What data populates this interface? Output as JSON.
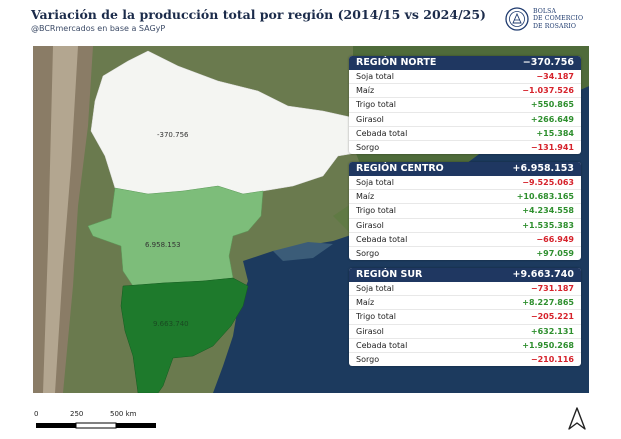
{
  "header": {
    "title": "Variación de la producción total por región (2014/15 vs 2024/25)",
    "subtitle": "@BCRmercados en base a SAGyP"
  },
  "logo": {
    "line1": "BOLSA",
    "line2": "DE COMERCIO",
    "line3": "DE ROSARIO"
  },
  "map": {
    "colors": {
      "norte": "#f4f5f2",
      "centro": "#7dbd7a",
      "sur": "#1e7a2c",
      "sea": "#1c3a5e"
    },
    "labels": {
      "norte": "-370.756",
      "centro": "6.958.153",
      "sur": "9.663.740"
    }
  },
  "regions": [
    {
      "name": "REGIÓN NORTE",
      "total": "−370.756",
      "rows": [
        {
          "crop": "Soja total",
          "value": "−34.187",
          "sign": "neg"
        },
        {
          "crop": "Maíz",
          "value": "−1.037.526",
          "sign": "neg"
        },
        {
          "crop": "Trigo total",
          "value": "+550.865",
          "sign": "pos"
        },
        {
          "crop": "Girasol",
          "value": "+266.649",
          "sign": "pos"
        },
        {
          "crop": "Cebada total",
          "value": "+15.384",
          "sign": "pos"
        },
        {
          "crop": "Sorgo",
          "value": "−131.941",
          "sign": "neg"
        }
      ]
    },
    {
      "name": "REGIÓN CENTRO",
      "total": "+6.958.153",
      "rows": [
        {
          "crop": "Soja total",
          "value": "−9.525.063",
          "sign": "neg"
        },
        {
          "crop": "Maíz",
          "value": "+10.683.165",
          "sign": "pos"
        },
        {
          "crop": "Trigo total",
          "value": "+4.234.558",
          "sign": "pos"
        },
        {
          "crop": "Girasol",
          "value": "+1.535.383",
          "sign": "pos"
        },
        {
          "crop": "Cebada total",
          "value": "−66.949",
          "sign": "neg"
        },
        {
          "crop": "Sorgo",
          "value": "+97.059",
          "sign": "pos"
        }
      ]
    },
    {
      "name": "REGIÓN SUR",
      "total": "+9.663.740",
      "rows": [
        {
          "crop": "Soja total",
          "value": "−731.187",
          "sign": "neg"
        },
        {
          "crop": "Maíz",
          "value": "+8.227.865",
          "sign": "pos"
        },
        {
          "crop": "Trigo total",
          "value": "−205.221",
          "sign": "neg"
        },
        {
          "crop": "Girasol",
          "value": "+632.131",
          "sign": "pos"
        },
        {
          "crop": "Cebada total",
          "value": "+1.950.268",
          "sign": "pos"
        },
        {
          "crop": "Sorgo",
          "value": "−210.116",
          "sign": "neg"
        }
      ]
    }
  ],
  "scale": {
    "labels": [
      "0",
      "250",
      "500 km"
    ]
  },
  "north_arrow_icon": "north-arrow-icon"
}
